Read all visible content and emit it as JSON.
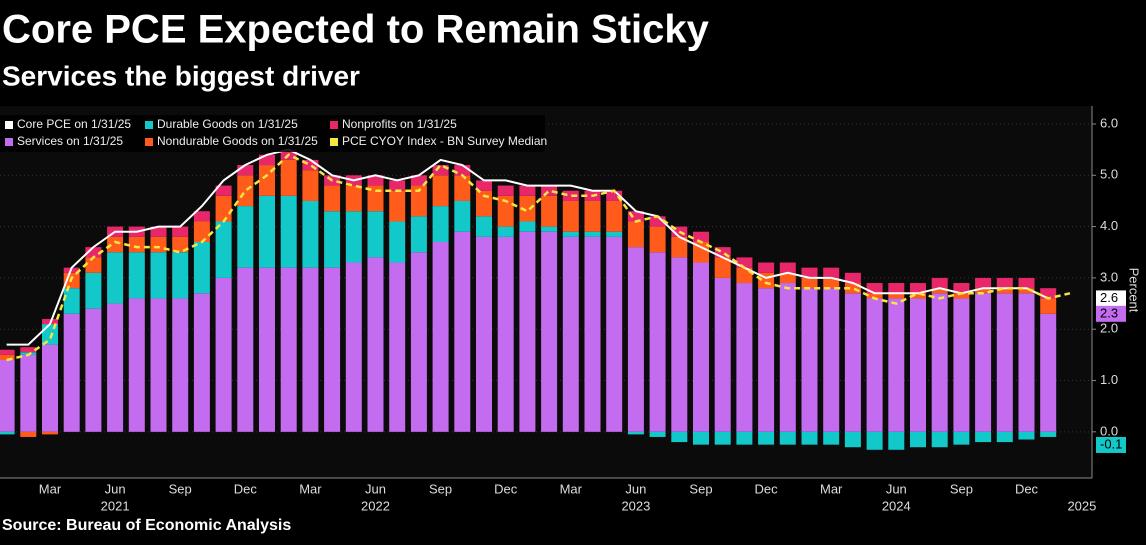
{
  "chart_data": {
    "type": "stacked-bar-line",
    "title": "Core PCE Expected to Remain Sticky",
    "subtitle": "Services the biggest driver",
    "source": "Source: Bureau of Economic Analysis",
    "y_label": "Percent",
    "categories": [
      null,
      null,
      "Mar",
      null,
      null,
      "Jun",
      null,
      null,
      "Sep",
      null,
      null,
      "Dec",
      null,
      null,
      "Mar",
      null,
      null,
      "Jun",
      null,
      null,
      "Sep",
      null,
      null,
      "Dec",
      null,
      null,
      "Mar",
      null,
      null,
      "Jun",
      null,
      null,
      "Sep",
      null,
      null,
      "Dec",
      null,
      null,
      "Mar",
      null,
      null,
      "Jun",
      null,
      null,
      "Sep",
      null,
      null,
      "Dec",
      null,
      null
    ],
    "year_categories": [
      null,
      null,
      null,
      null,
      null,
      "2021",
      null,
      null,
      null,
      null,
      null,
      null,
      null,
      null,
      null,
      null,
      null,
      "2022",
      null,
      null,
      null,
      null,
      null,
      null,
      null,
      null,
      null,
      null,
      null,
      "2023",
      null,
      null,
      null,
      null,
      null,
      null,
      null,
      null,
      null,
      null,
      null,
      "2024",
      null,
      null,
      null,
      null,
      null,
      null,
      null,
      "2025"
    ],
    "ylim": [
      -0.9,
      6.0
    ],
    "yticks": [
      {
        "value": 0,
        "label": "0.0"
      },
      {
        "value": 1,
        "label": "1.0"
      },
      {
        "value": 2,
        "label": "2.0"
      },
      {
        "value": 3,
        "label": "3.0"
      },
      {
        "value": 4,
        "label": "4.0"
      },
      {
        "value": 5,
        "label": "5.0"
      },
      {
        "value": 6,
        "label": "6.0"
      }
    ],
    "bar_series": [
      {
        "name": "Services on 1/31/25",
        "color": "#c46cf0",
        "values": [
          1.4,
          1.5,
          1.7,
          2.3,
          2.4,
          2.5,
          2.6,
          2.6,
          2.6,
          2.7,
          3.0,
          3.2,
          3.2,
          3.2,
          3.2,
          3.2,
          3.3,
          3.4,
          3.3,
          3.5,
          3.7,
          3.9,
          3.8,
          3.8,
          3.9,
          3.9,
          3.8,
          3.8,
          3.8,
          3.6,
          3.5,
          3.4,
          3.3,
          3.0,
          2.9,
          2.8,
          2.9,
          2.8,
          2.8,
          2.7,
          2.6,
          2.6,
          2.6,
          2.7,
          2.6,
          2.7,
          2.7,
          2.7,
          2.3
        ]
      },
      {
        "name": "Durable Goods on 1/31/25",
        "color": "#12c8c8",
        "values": [
          -0.05,
          0.05,
          0.4,
          0.5,
          0.7,
          1.0,
          0.9,
          0.9,
          0.9,
          1.0,
          1.1,
          1.2,
          1.4,
          1.4,
          1.3,
          1.1,
          1.0,
          0.9,
          0.8,
          0.7,
          0.7,
          0.6,
          0.4,
          0.2,
          0.2,
          0.1,
          0.1,
          0.1,
          0.1,
          -0.05,
          -0.1,
          -0.2,
          -0.25,
          -0.25,
          -0.25,
          -0.25,
          -0.25,
          -0.25,
          -0.25,
          -0.3,
          -0.35,
          -0.35,
          -0.3,
          -0.3,
          -0.25,
          -0.2,
          -0.2,
          -0.15,
          -0.1
        ]
      },
      {
        "name": "Nondurable Goods on 1/31/25",
        "color": "#ff5b1a",
        "values": [
          0.1,
          -0.1,
          -0.05,
          0.3,
          0.3,
          0.3,
          0.3,
          0.3,
          0.3,
          0.4,
          0.5,
          0.6,
          0.6,
          0.7,
          0.6,
          0.5,
          0.5,
          0.5,
          0.6,
          0.6,
          0.6,
          0.5,
          0.5,
          0.6,
          0.5,
          0.6,
          0.6,
          0.6,
          0.6,
          0.5,
          0.5,
          0.4,
          0.4,
          0.4,
          0.3,
          0.3,
          0.2,
          0.2,
          0.2,
          0.2,
          0.1,
          0.1,
          0.1,
          0.1,
          0.1,
          0.1,
          0.1,
          0.1,
          0.3
        ]
      },
      {
        "name": "Nonprofits on 1/31/25",
        "color": "#e8276b",
        "values": [
          0.1,
          0.1,
          0.1,
          0.1,
          0.2,
          0.2,
          0.2,
          0.2,
          0.2,
          0.2,
          0.2,
          0.2,
          0.2,
          0.2,
          0.2,
          0.2,
          0.2,
          0.2,
          0.2,
          0.2,
          0.2,
          0.2,
          0.2,
          0.2,
          0.2,
          0.2,
          0.2,
          0.2,
          0.2,
          0.2,
          0.2,
          0.2,
          0.2,
          0.2,
          0.2,
          0.2,
          0.2,
          0.2,
          0.2,
          0.2,
          0.2,
          0.2,
          0.2,
          0.2,
          0.2,
          0.2,
          0.2,
          0.2,
          0.2
        ]
      }
    ],
    "line_series": [
      {
        "name": "Core PCE on 1/31/25",
        "color": "#ffffff",
        "dashed": false,
        "values": [
          1.7,
          1.7,
          2.1,
          3.2,
          3.6,
          3.9,
          3.9,
          4.0,
          4.0,
          4.4,
          4.9,
          5.2,
          5.4,
          5.5,
          5.3,
          5.0,
          4.9,
          5.0,
          4.9,
          5.0,
          5.3,
          5.2,
          4.9,
          4.9,
          4.8,
          4.8,
          4.8,
          4.7,
          4.7,
          4.3,
          4.2,
          3.8,
          3.6,
          3.4,
          3.2,
          3.0,
          3.1,
          3.0,
          3.0,
          2.9,
          2.7,
          2.7,
          2.7,
          2.8,
          2.7,
          2.8,
          2.8,
          2.8,
          2.6,
          null
        ]
      },
      {
        "name": "PCE CYOY Index - BN Survey Median",
        "color": "#f5e642",
        "dashed": true,
        "values": [
          1.4,
          1.5,
          1.8,
          3.0,
          3.4,
          3.7,
          3.6,
          3.6,
          3.5,
          3.7,
          4.1,
          4.7,
          5.0,
          5.4,
          5.2,
          4.9,
          4.8,
          4.7,
          4.7,
          4.7,
          5.2,
          5.0,
          4.6,
          4.5,
          4.3,
          4.7,
          4.6,
          4.6,
          4.7,
          4.1,
          4.2,
          3.9,
          3.7,
          3.5,
          3.2,
          2.9,
          2.8,
          2.8,
          2.8,
          2.8,
          2.6,
          2.5,
          2.7,
          2.6,
          2.7,
          2.7,
          2.8,
          2.8,
          2.6,
          2.7
        ]
      }
    ]
  }
}
